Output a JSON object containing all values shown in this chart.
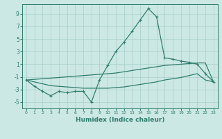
{
  "x": [
    0,
    1,
    2,
    3,
    4,
    5,
    6,
    7,
    8,
    9,
    10,
    11,
    12,
    13,
    14,
    15,
    16,
    17,
    18,
    19,
    20,
    21,
    22,
    23
  ],
  "y_main": [
    -1.5,
    -2.5,
    -3.3,
    -4.0,
    -3.3,
    -3.5,
    -3.3,
    -3.3,
    -5.0,
    -1.5,
    0.8,
    3.0,
    4.5,
    6.2,
    8.0,
    9.8,
    8.5,
    2.0,
    1.8,
    1.5,
    1.3,
    1.0,
    -0.5,
    -1.8
  ],
  "y_line_upper": [
    -1.5,
    -1.4,
    -1.3,
    -1.2,
    -1.1,
    -1.0,
    -0.9,
    -0.8,
    -0.7,
    -0.6,
    -0.5,
    -0.4,
    -0.2,
    0.0,
    0.2,
    0.4,
    0.6,
    0.8,
    0.9,
    1.0,
    1.1,
    1.2,
    1.2,
    -1.8
  ],
  "y_line_lower": [
    -1.5,
    -1.8,
    -2.1,
    -2.4,
    -2.5,
    -2.6,
    -2.7,
    -2.8,
    -2.8,
    -2.8,
    -2.8,
    -2.7,
    -2.6,
    -2.4,
    -2.2,
    -2.0,
    -1.8,
    -1.5,
    -1.3,
    -1.1,
    -0.8,
    -0.5,
    -1.5,
    -1.8
  ],
  "color": "#2e7d6e",
  "bg_color": "#cce8e4",
  "grid_color_major": "#a8cfc9",
  "xlabel": "Humidex (Indice chaleur)",
  "ylim": [
    -6,
    10.5
  ],
  "xlim": [
    -0.5,
    23.5
  ],
  "yticks": [
    -5,
    -3,
    -1,
    1,
    3,
    5,
    7,
    9
  ],
  "xticks": [
    0,
    1,
    2,
    3,
    4,
    5,
    6,
    7,
    8,
    9,
    10,
    11,
    12,
    13,
    14,
    15,
    16,
    17,
    18,
    19,
    20,
    21,
    22,
    23
  ]
}
